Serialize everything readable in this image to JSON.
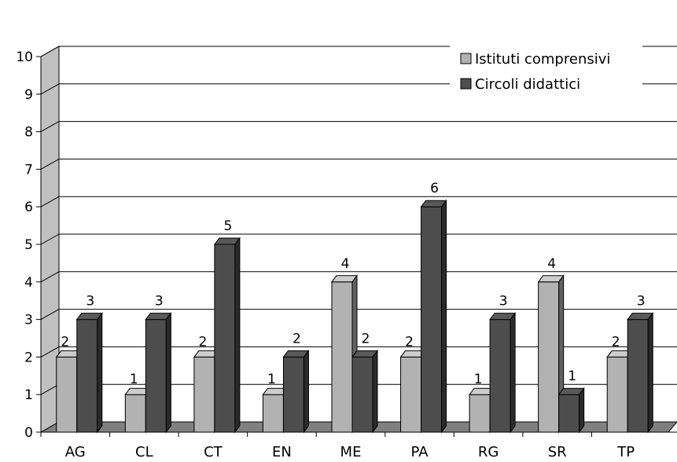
{
  "chart_data": {
    "type": "bar",
    "style": "3d-clustered-column",
    "categories": [
      "AG",
      "CL",
      "CT",
      "EN",
      "ME",
      "PA",
      "RG",
      "SR",
      "TP"
    ],
    "series": [
      {
        "name": "Istituti comprensivi",
        "values": [
          2,
          1,
          2,
          1,
          4,
          2,
          1,
          4,
          2
        ],
        "color": "#b2b2b2"
      },
      {
        "name": "Circoli didattici",
        "values": [
          3,
          3,
          5,
          2,
          2,
          6,
          3,
          1,
          3
        ],
        "color": "#4d4d4d"
      }
    ],
    "yticks": [
      0,
      1,
      2,
      3,
      4,
      5,
      6,
      7,
      8,
      9,
      10
    ],
    "ylim": [
      0,
      10
    ],
    "grid": true,
    "legend_position": "top-right",
    "data_labels": true,
    "wall_color": "#ffffff",
    "floor_color": "#808080"
  }
}
